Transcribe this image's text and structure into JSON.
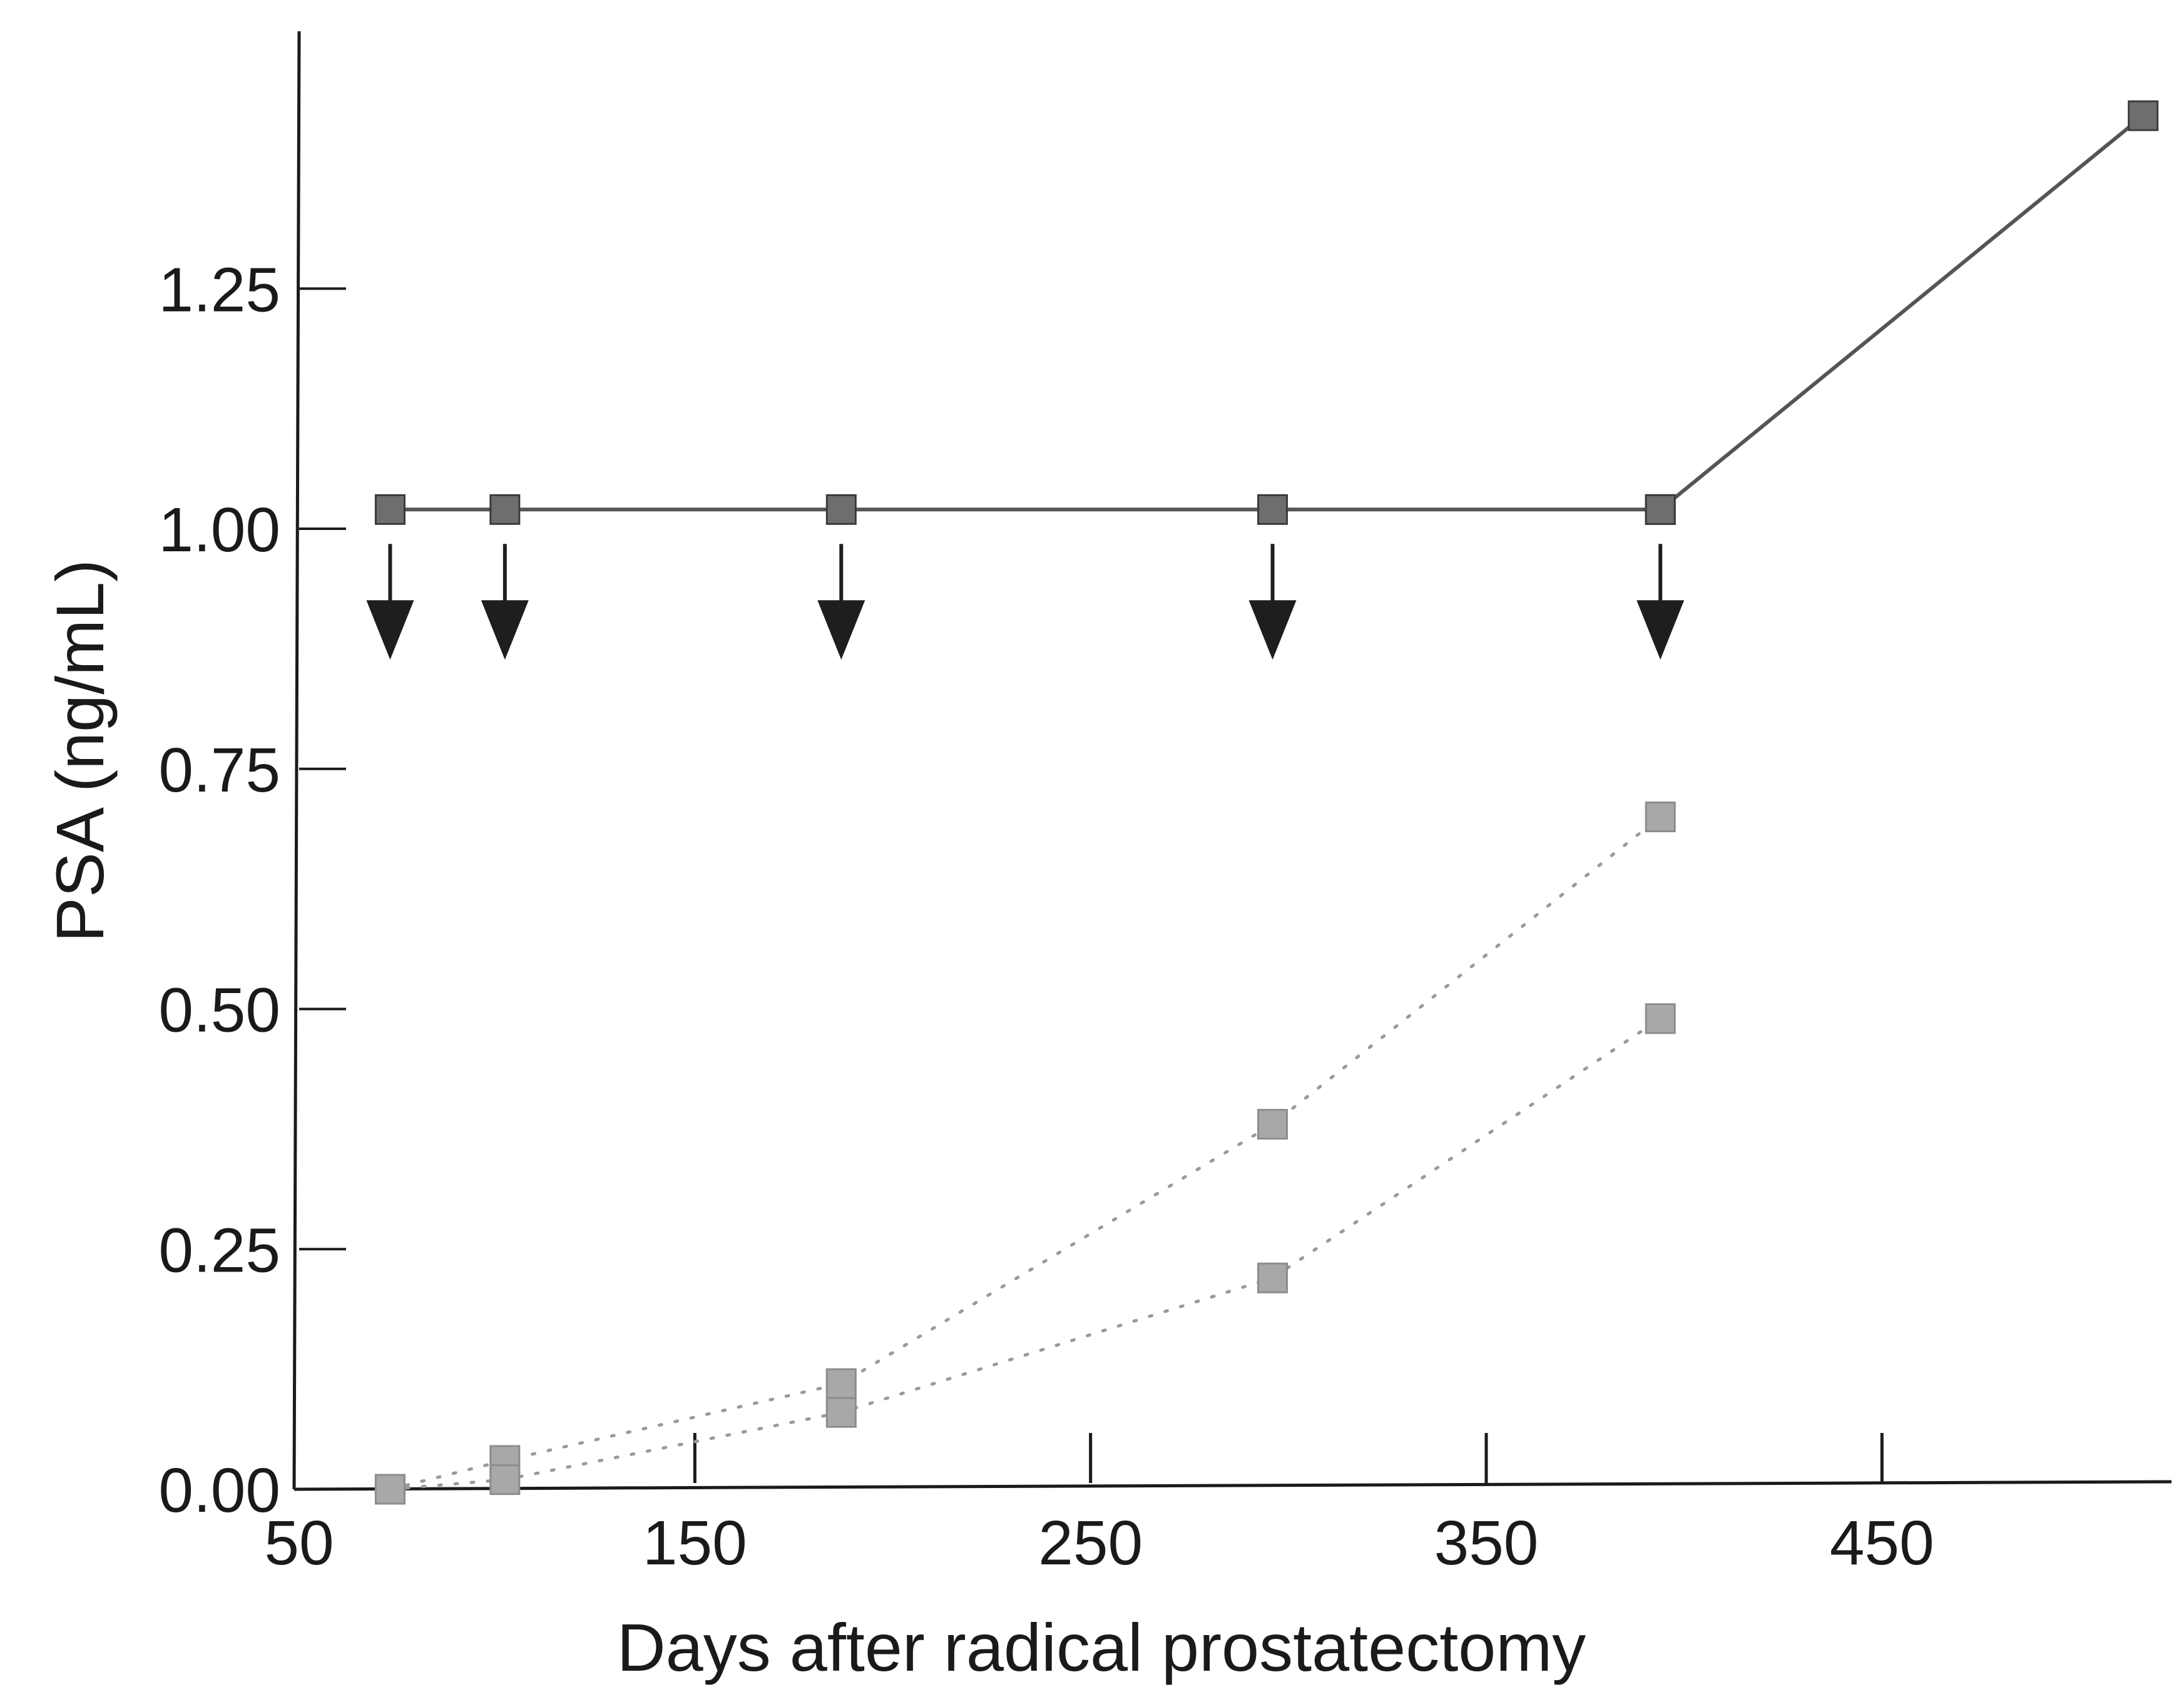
{
  "chart_data": {
    "type": "line",
    "title": "",
    "xlabel": "Days after radical prostatectomy",
    "ylabel": "PSA (ng/mL)",
    "xlim": [
      50,
      520
    ],
    "ylim": [
      0,
      1.45
    ],
    "x_ticks": [
      50,
      150,
      250,
      350,
      450
    ],
    "x_tick_labels": [
      "50",
      "150",
      "250",
      "350",
      "450"
    ],
    "y_ticks": [
      0,
      0.25,
      0.5,
      0.75,
      1.0,
      1.25
    ],
    "y_tick_labels": [
      "0.00",
      "0.25",
      "0.50",
      "0.75",
      "1.00",
      "1.25"
    ],
    "grid": false,
    "legend": "none",
    "series": [
      {
        "style": "solid",
        "color": "#555555",
        "x": [
          73,
          102,
          187,
          296,
          394
        ],
        "y": [
          1.02,
          1.02,
          1.02,
          1.02,
          1.02
        ]
      },
      {
        "style": "solid",
        "color": "#555555",
        "x": [
          394,
          516
        ],
        "y": [
          1.02,
          1.43
        ]
      },
      {
        "style": "dotted",
        "color": "#9a9a9a",
        "x": [
          73,
          102,
          187,
          296,
          394
        ],
        "y": [
          0.0,
          0.03,
          0.11,
          0.38,
          0.7
        ]
      },
      {
        "style": "dotted",
        "color": "#9a9a9a",
        "x": [
          73,
          102,
          187,
          296,
          394
        ],
        "y": [
          0.0,
          0.01,
          0.08,
          0.22,
          0.49
        ]
      }
    ],
    "markers": {
      "shape": "square",
      "dark_color": "#6e6e6e",
      "light_color": "#a8a8a8"
    },
    "annotations": {
      "down_arrows_at_x": [
        73,
        102,
        187,
        296,
        394
      ],
      "arrow_color": "#1e1e1e"
    }
  }
}
